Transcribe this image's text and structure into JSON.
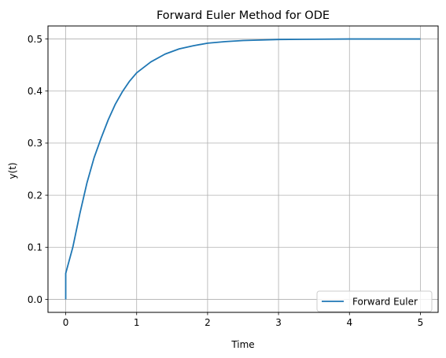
{
  "chart_data": {
    "type": "line",
    "title": "Forward Euler Method for ODE",
    "xlabel": "Time",
    "ylabel": "y(t)",
    "xlim": [
      -0.25,
      5.25
    ],
    "ylim": [
      -0.025,
      0.525
    ],
    "xticks": [
      0,
      1,
      2,
      3,
      4,
      5
    ],
    "yticks": [
      0.0,
      0.1,
      0.2,
      0.3,
      0.4,
      0.5
    ],
    "xtick_labels": [
      "0",
      "1",
      "2",
      "3",
      "4",
      "5"
    ],
    "ytick_labels": [
      "0.0",
      "0.1",
      "0.2",
      "0.3",
      "0.4",
      "0.5"
    ],
    "grid": true,
    "legend_position": "lower-right",
    "series": [
      {
        "name": "Forward Euler",
        "color": "#1f77b4",
        "x": [
          0,
          0,
          0.1,
          0.2,
          0.3,
          0.4,
          0.5,
          0.6,
          0.7,
          0.8,
          0.9,
          1.0,
          1.2,
          1.4,
          1.6,
          1.8,
          2.0,
          2.25,
          2.5,
          2.75,
          3.0,
          3.5,
          4.0,
          4.5,
          5.0
        ],
        "y": [
          0.0,
          0.05,
          0.1,
          0.165,
          0.224,
          0.272,
          0.31,
          0.345,
          0.375,
          0.399,
          0.419,
          0.435,
          0.456,
          0.471,
          0.481,
          0.487,
          0.492,
          0.495,
          0.497,
          0.498,
          0.499,
          0.4995,
          0.5,
          0.5,
          0.5
        ]
      }
    ]
  }
}
